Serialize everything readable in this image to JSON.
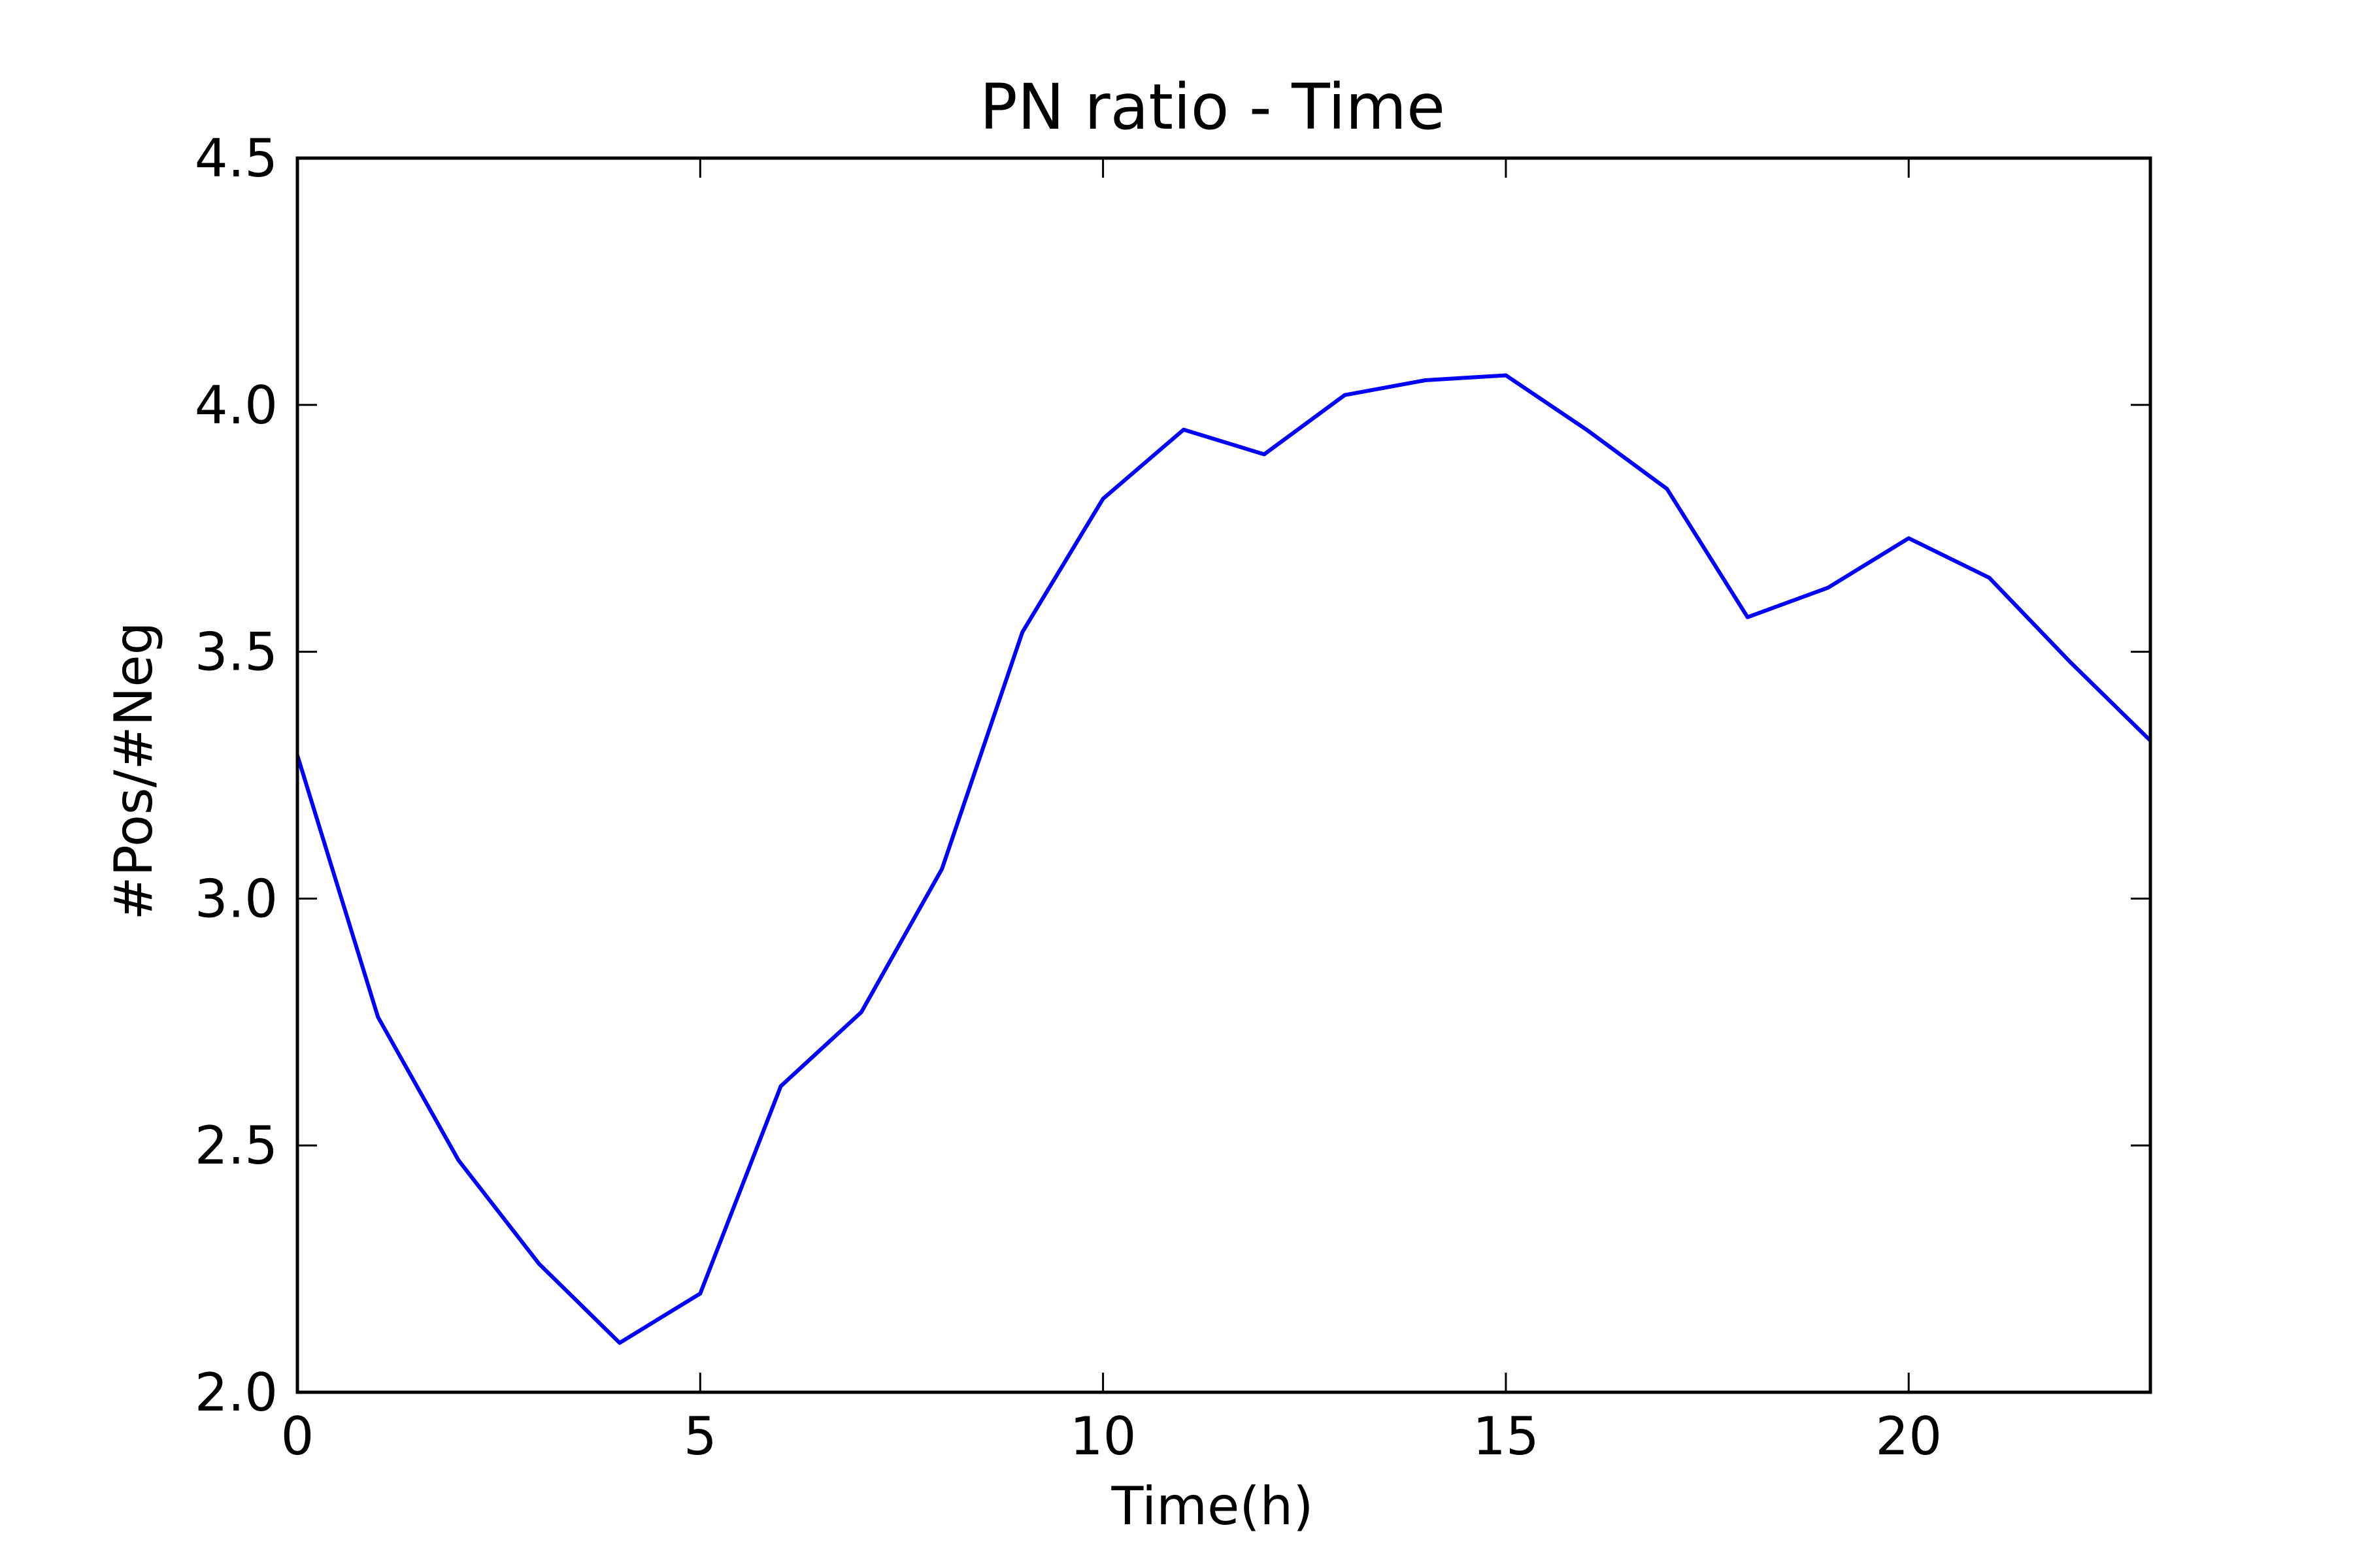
{
  "chart_data": {
    "type": "line",
    "title": "PN ratio - Time",
    "xlabel": "Time(h)",
    "ylabel": "#Pos/#Neg",
    "xlim": [
      0,
      23
    ],
    "ylim": [
      2.0,
      4.5
    ],
    "xticks": [
      0,
      5,
      10,
      15,
      20
    ],
    "xtick_labels": [
      "0",
      "5",
      "10",
      "15",
      "20"
    ],
    "yticks": [
      2.0,
      2.5,
      3.0,
      3.5,
      4.0,
      4.5
    ],
    "ytick_labels": [
      "2.0",
      "2.5",
      "3.0",
      "3.5",
      "4.0",
      "4.5"
    ],
    "grid": false,
    "line_color": "#0000ff",
    "x": [
      0,
      1,
      2,
      3,
      4,
      5,
      6,
      7,
      8,
      9,
      10,
      11,
      12,
      13,
      14,
      15,
      16,
      17,
      18,
      19,
      20,
      21,
      22,
      23
    ],
    "values": [
      3.29,
      2.76,
      2.47,
      2.26,
      2.1,
      2.2,
      2.62,
      2.77,
      3.06,
      3.54,
      3.81,
      3.95,
      3.9,
      4.02,
      4.05,
      4.06,
      3.95,
      3.83,
      3.57,
      3.63,
      3.73,
      3.65,
      3.48,
      3.32
    ]
  }
}
